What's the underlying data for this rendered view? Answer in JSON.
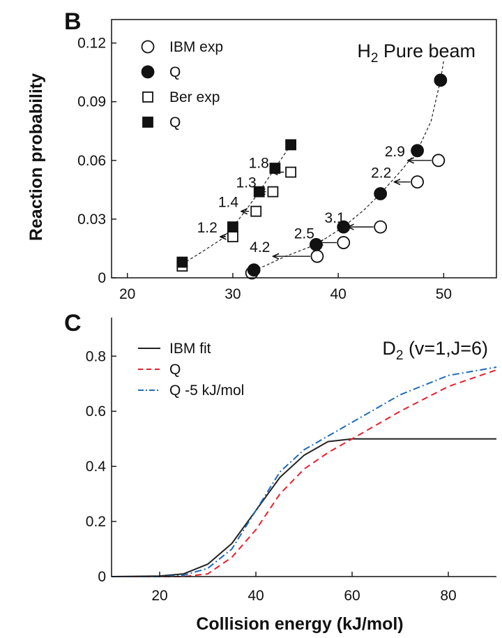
{
  "chart_data": [
    {
      "panel": "B",
      "type": "scatter",
      "title": "H",
      "title_sub": "2",
      "title_rest": " Pure beam",
      "xlabel": "",
      "ylabel": "Reaction probability",
      "xlim": [
        18.5,
        55
      ],
      "ylim": [
        0,
        0.132
      ],
      "xticks": [
        20,
        30,
        40,
        50
      ],
      "yticks": [
        0,
        0.03,
        0.06,
        0.09,
        0.12
      ],
      "ytick_labels": [
        "0",
        "0.03",
        "0.06",
        "0.09",
        "0.12"
      ],
      "legend_position": "top-left",
      "series": [
        {
          "name": "IBM exp",
          "marker": "open-circle",
          "x": [
            31.8,
            38,
            40.5,
            44,
            47.5,
            49.5
          ],
          "y": [
            0.0025,
            0.011,
            0.018,
            0.026,
            0.049,
            0.06
          ]
        },
        {
          "name": "Q",
          "marker": "filled-circle",
          "x": [
            32,
            37.9,
            40.5,
            44,
            47.5,
            49.7
          ],
          "y": [
            0.004,
            0.017,
            0.026,
            0.043,
            0.065,
            0.101
          ]
        },
        {
          "name": "Ber exp",
          "marker": "open-square",
          "x": [
            25.2,
            30,
            32.2,
            33.8,
            35.5
          ],
          "y": [
            0.006,
            0.021,
            0.034,
            0.044,
            0.054
          ]
        },
        {
          "name": "Q",
          "marker": "filled-square",
          "x": [
            25.2,
            30,
            32.5,
            34,
            35.5
          ],
          "y": [
            0.008,
            0.026,
            0.044,
            0.056,
            0.068
          ]
        }
      ],
      "fit_lines": [
        {
          "style": "dashed",
          "x": [
            31.5,
            33,
            35,
            37.9,
            40.5,
            42.5,
            44,
            46,
            47.5,
            48.8,
            49.7,
            50
          ],
          "y": [
            0.003,
            0.006,
            0.011,
            0.017,
            0.026,
            0.035,
            0.043,
            0.055,
            0.065,
            0.08,
            0.101,
            0.111
          ]
        },
        {
          "style": "dashed",
          "x": [
            25.2,
            27,
            29,
            30,
            31.3,
            32.5,
            34,
            35.5
          ],
          "y": [
            0.007,
            0.013,
            0.02,
            0.026,
            0.035,
            0.044,
            0.056,
            0.068
          ]
        }
      ],
      "shift_annotations": [
        {
          "label": "4.2",
          "from_x": 38,
          "to_x": 33.8,
          "y": 0.011
        },
        {
          "label": "2.5",
          "from_x": 40.5,
          "to_x": 38,
          "y": 0.018
        },
        {
          "label": "3.1",
          "from_x": 44,
          "to_x": 40.9,
          "y": 0.026
        },
        {
          "label": "2.2",
          "from_x": 47.5,
          "to_x": 45.3,
          "y": 0.049
        },
        {
          "label": "2.9",
          "from_x": 49.5,
          "to_x": 46.6,
          "y": 0.06
        },
        {
          "label": "1.2",
          "from_x": 30,
          "to_x": 28.8,
          "y": 0.021
        },
        {
          "label": "1.4",
          "from_x": 32.2,
          "to_x": 30.8,
          "y": 0.034
        },
        {
          "label": "1.3",
          "from_x": 33.8,
          "to_x": 32.5,
          "y": 0.044
        },
        {
          "label": "1.8",
          "from_x": 35.5,
          "to_x": 33.7,
          "y": 0.054
        }
      ]
    },
    {
      "panel": "C",
      "type": "line",
      "title": "D",
      "title_sub": "2",
      "title_rest": " (v=1,J=6)",
      "xlabel": "Collision energy (kJ/mol)",
      "ylabel": "",
      "xlim": [
        10,
        90
      ],
      "ylim": [
        0,
        0.94
      ],
      "xticks": [
        20,
        40,
        60,
        80
      ],
      "yticks": [
        0,
        0.2,
        0.4,
        0.6,
        0.8
      ],
      "ytick_labels": [
        "0",
        "0.2",
        "0.4",
        "0.6",
        "0.8"
      ],
      "legend_position": "top-left",
      "series": [
        {
          "name": "IBM fit",
          "style": "solid",
          "color": "#222222",
          "x": [
            10,
            20,
            25,
            30,
            35,
            40,
            45,
            50,
            55,
            60,
            70,
            80,
            90
          ],
          "y": [
            0,
            0.002,
            0.01,
            0.045,
            0.12,
            0.24,
            0.36,
            0.44,
            0.49,
            0.5,
            0.5,
            0.5,
            0.5
          ]
        },
        {
          "name": "Q",
          "style": "dashed",
          "color": "#e8212b",
          "x": [
            10,
            25,
            30,
            35,
            40,
            45,
            50,
            55,
            60,
            70,
            80,
            90
          ],
          "y": [
            0,
            0,
            0.01,
            0.07,
            0.17,
            0.3,
            0.39,
            0.45,
            0.5,
            0.6,
            0.69,
            0.75
          ]
        },
        {
          "name": "Q -5 kJ/mol",
          "style": "dashdot",
          "color": "#1f6bb8",
          "x": [
            10,
            20,
            25,
            30,
            35,
            40,
            45,
            50,
            55,
            60,
            70,
            80,
            90
          ],
          "y": [
            0,
            0,
            0.005,
            0.03,
            0.1,
            0.24,
            0.38,
            0.46,
            0.51,
            0.56,
            0.66,
            0.73,
            0.76
          ]
        }
      ]
    }
  ]
}
